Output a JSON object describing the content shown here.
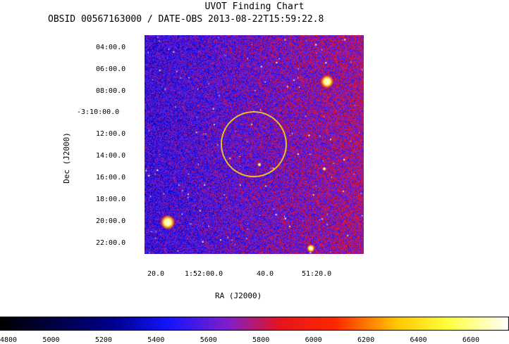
{
  "title": "UVOT Finding Chart",
  "subtitle": "OBSID 00567163000 / DATE-OBS 2013-08-22T15:59:22.8",
  "y_axis": {
    "label": "Dec (J2000)",
    "ticks": [
      "04:00.0",
      "06:00.0",
      "08:00.0",
      "-3:10:00.0",
      "12:00.0",
      "14:00.0",
      "16:00.0",
      "18:00.0",
      "20:00.0",
      "22:00.0"
    ]
  },
  "x_axis": {
    "label": "RA (J2000)",
    "ticks": [
      "20.0",
      "1:52:00.0",
      "40.0",
      "51:20.0"
    ]
  },
  "colorbar": {
    "ticks": [
      "4800",
      "5000",
      "5200",
      "5400",
      "5600",
      "5800",
      "6000",
      "6200",
      "6400",
      "6600"
    ],
    "range": [
      4800,
      6740
    ]
  },
  "colors": {
    "background_field": "#2a1fd8",
    "circle": "#e8c020",
    "noise_red": "#d01818",
    "noise_blue": "#0a0ae8"
  }
}
